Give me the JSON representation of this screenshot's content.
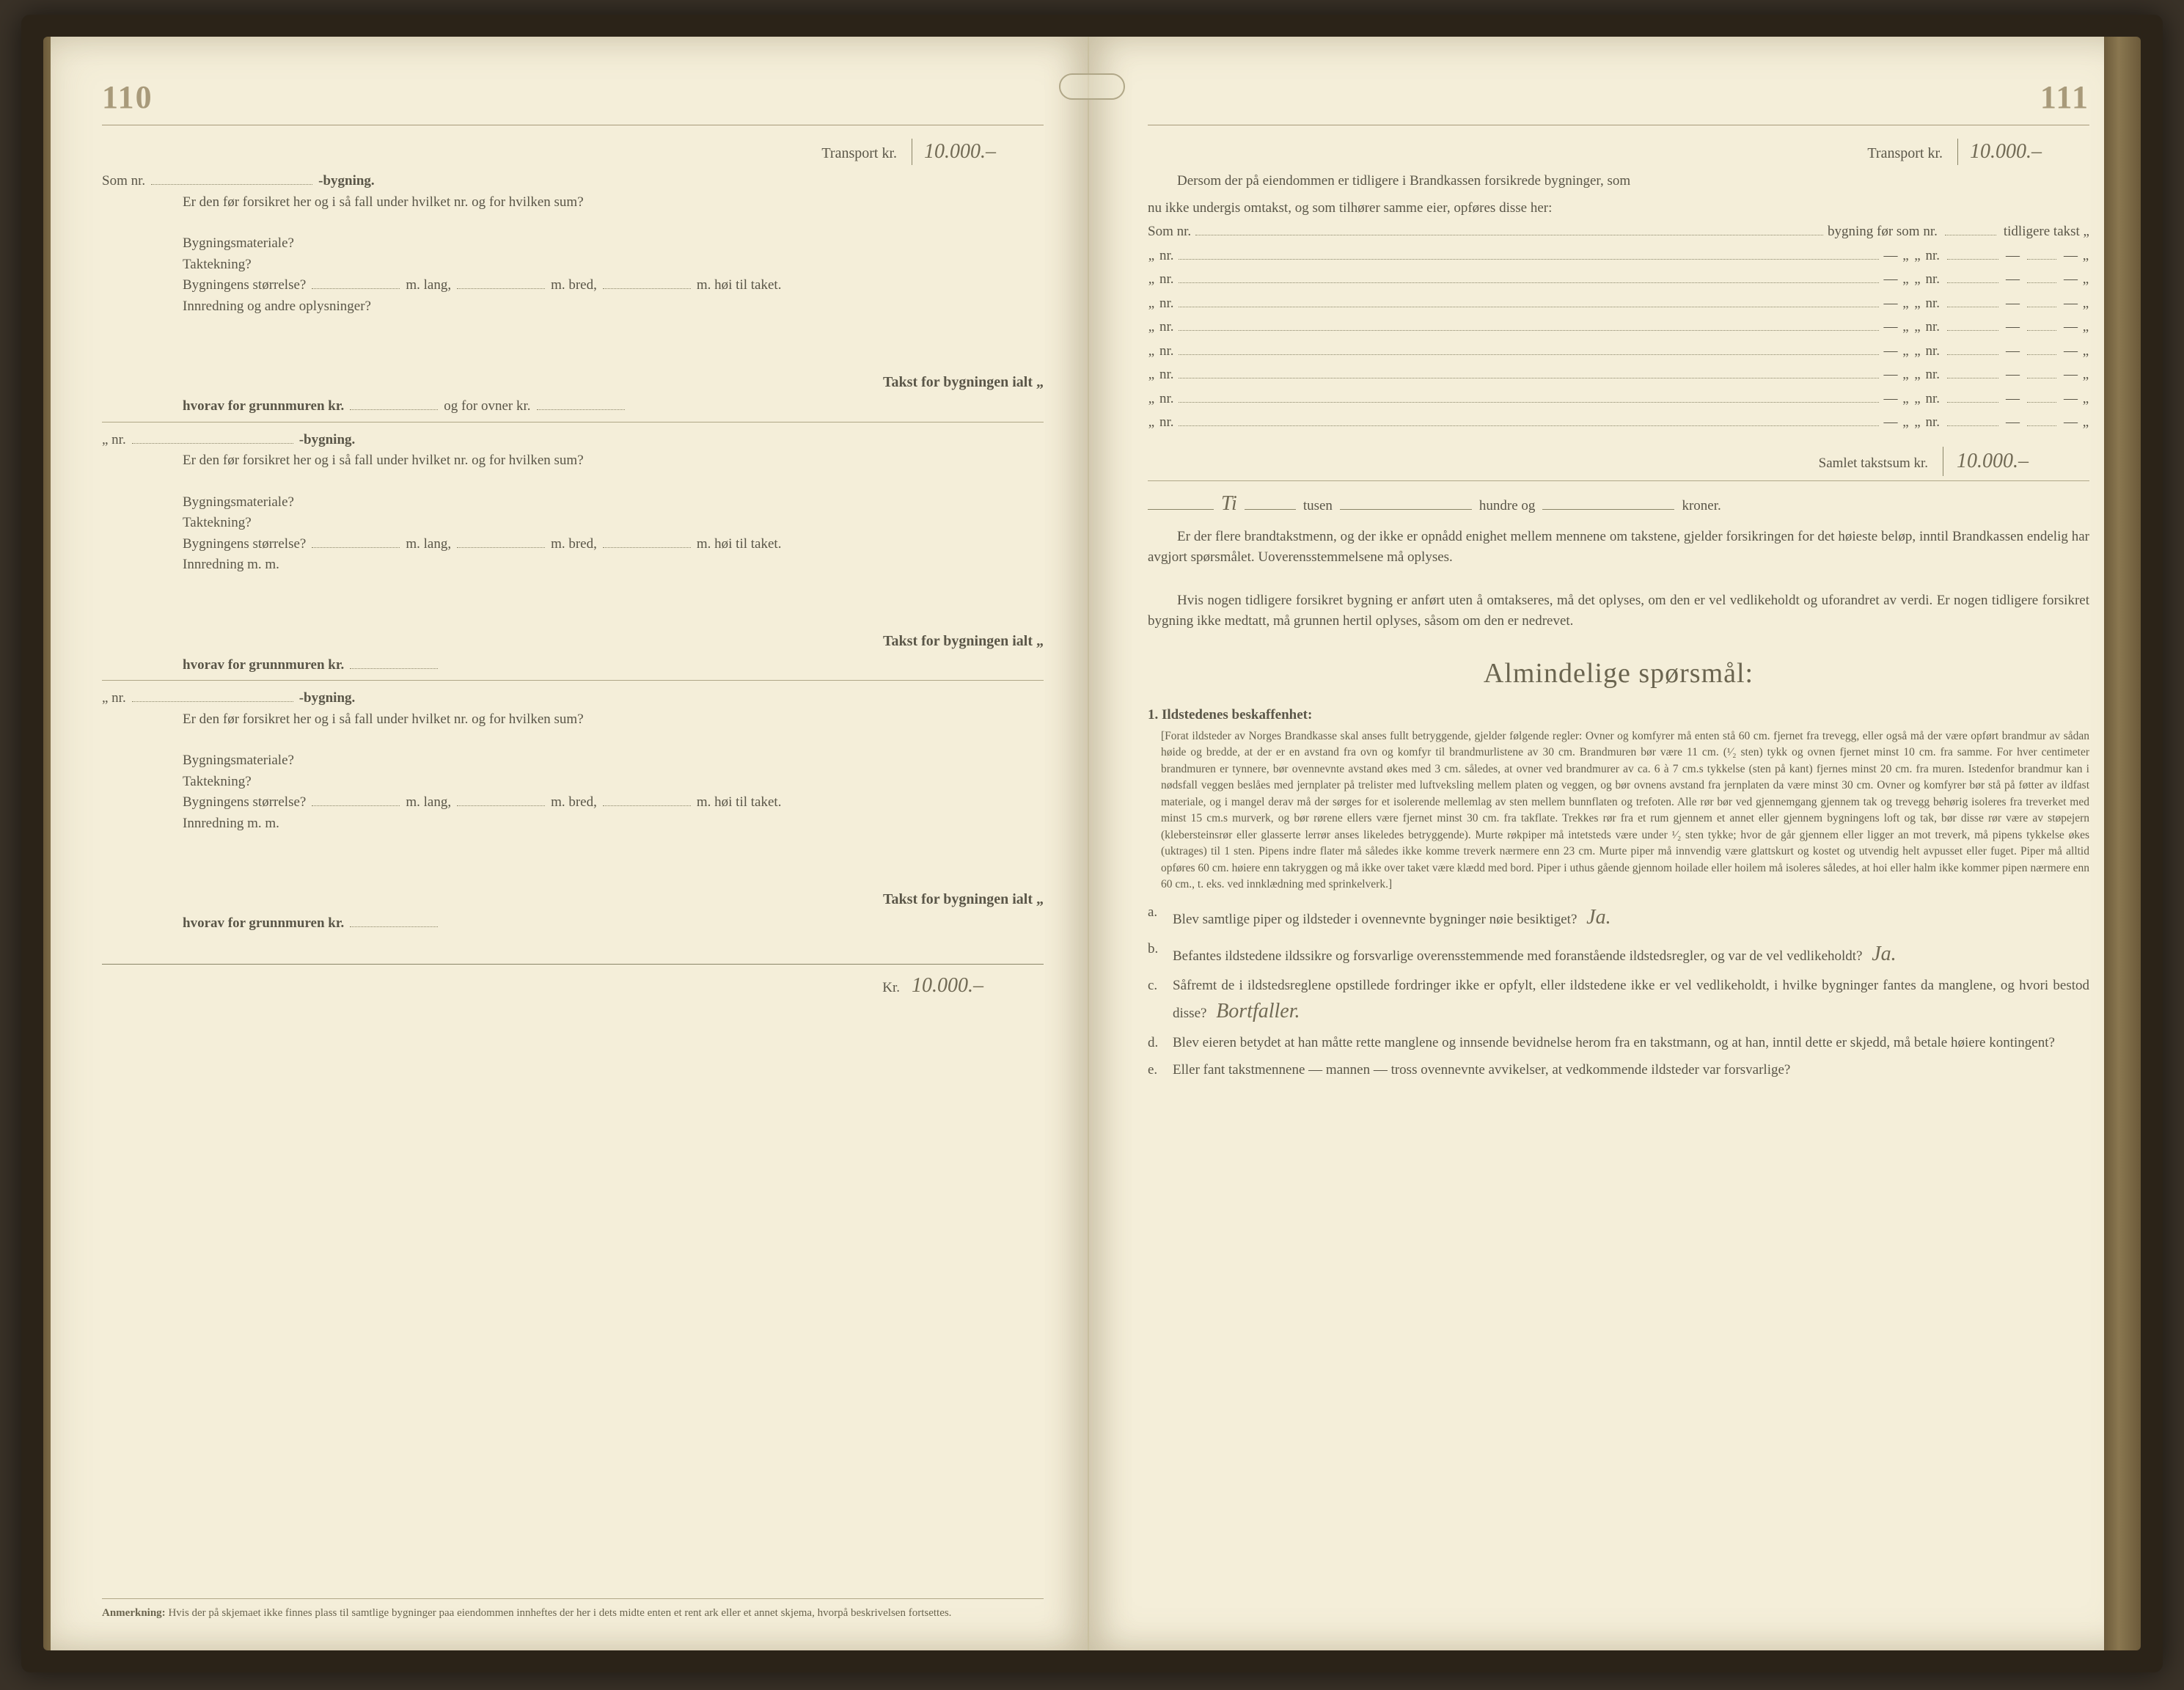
{
  "colors": {
    "paper": "#f4eed9",
    "ink": "#5a5648",
    "faded": "#a89a7a",
    "handwriting": "#716a55",
    "cover": "#2b2318"
  },
  "left": {
    "page_number": "110",
    "transport_label": "Transport kr.",
    "transport_value": "10.000.–",
    "building_blocks": [
      {
        "som_nr": "Som nr.",
        "bygning": "-bygning.",
        "q_insured": "Er den før forsikret her og i så fall under hvilket nr. og for hvilken sum?",
        "mat": "Bygningsmateriale?",
        "tak": "Taktekning?",
        "size_label": "Bygningens størrelse?",
        "lang": "m. lang,",
        "bred": "m. bred,",
        "hoi": "m. høi til taket.",
        "innred": "Innredning og andre oplysninger?",
        "takst_label": "Takst for bygningen ialt „",
        "hvorav": "hvorav for grunnmuren kr.",
        "ogfor": "og for ovner kr."
      },
      {
        "som_nr": "„ nr.",
        "bygning": "-bygning.",
        "q_insured": "Er den før forsikret her og i så fall under hvilket nr. og for hvilken sum?",
        "mat": "Bygningsmateriale?",
        "tak": "Taktekning?",
        "size_label": "Bygningens størrelse?",
        "lang": "m. lang,",
        "bred": "m. bred,",
        "hoi": "m. høi til taket.",
        "innred": "Innredning m. m.",
        "takst_label": "Takst for bygningen ialt „",
        "hvorav": "hvorav for grunnmuren kr.",
        "ogfor": ""
      },
      {
        "som_nr": "„ nr.",
        "bygning": "-bygning.",
        "q_insured": "Er den før forsikret her og i så fall under hvilket nr. og for hvilken sum?",
        "mat": "Bygningsmateriale?",
        "tak": "Taktekning?",
        "size_label": "Bygningens størrelse?",
        "lang": "m. lang,",
        "bred": "m. bred,",
        "hoi": "m. høi til taket.",
        "innred": "Innredning m. m.",
        "takst_label": "Takst for bygningen ialt „",
        "hvorav": "hvorav for grunnmuren kr.",
        "ogfor": ""
      }
    ],
    "kr_label": "Kr.",
    "kr_value": "10.000.–",
    "footnote_label": "Anmerkning:",
    "footnote_text": "Hvis der på skjemaet ikke finnes plass til samtlige bygninger paa eiendommen innheftes der her i dets midte enten et rent ark eller et annet skjema, hvorpå beskrivelsen fortsettes."
  },
  "right": {
    "page_number": "111",
    "transport_label": "Transport kr.",
    "transport_value": "10.000.–",
    "intro1": "Dersom der på eiendommen er tidligere i Brandkassen forsikrede bygninger, som",
    "intro2": "nu ikke undergis omtakst, og som tilhører samme eier, opføres disse her:",
    "col_som_nr": "Som nr.",
    "col_byg": "bygning før som nr.",
    "col_takst": "tidligere takst „",
    "rows_count": 8,
    "row_nr": "„ nr.",
    "row_nr_mid": "nr.",
    "row_dash": "—",
    "row_q": "„",
    "samlet_label": "Samlet takstsum kr.",
    "samlet_value": "10.000.–",
    "tusen_hand": "Ti",
    "tusen": "tusen",
    "hundre": "hundre og",
    "kroner": "kroner.",
    "para1": "Er der flere brandtakstmenn, og der ikke er opnådd enighet mellem mennene om takstene, gjelder forsikringen for det høieste beløp, inntil Brandkassen endelig har avgjort spørsmålet. Uoverensstemmelsene må oplyses.",
    "para2": "Hvis nogen tidligere forsikret bygning er anført uten å omtakseres, må det oplyses, om den er vel vedlikeholdt og uforandret av verdi. Er nogen tidligere forsikret bygning ikke medtatt, må grunnen hertil oplyses, såsom om den er nedrevet.",
    "heading": "Almindelige spørsmål:",
    "q1_num": "1.",
    "q1_label": "Ildstedenes beskaffenhet:",
    "fineprint": "[Forat ildsteder av Norges Brandkasse skal anses fullt betryggende, gjelder følgende regler: Ovner og komfyrer må enten stå 60 cm. fjernet fra trevegg, eller også må der være opført brandmur av sådan høide og bredde, at der er en avstand fra ovn og komfyr til brandmurlistene av 30 cm. Brandmuren bør være 11 cm. (¹⁄₂ sten) tykk og ovnen fjernet minst 10 cm. fra samme. For hver centimeter brandmuren er tynnere, bør ovennevnte avstand økes med 3 cm. således, at ovner ved brandmurer av ca. 6 à 7 cm.s tykkelse (sten på kant) fjernes minst 20 cm. fra muren. Istedenfor brandmur kan i nødsfall veggen beslåes med jernplater på trelister med luftveksling mellem platen og veggen, og bør ovnens avstand fra jernplaten da være minst 30 cm. Ovner og komfyrer bør stå på føtter av ildfast materiale, og i mangel derav må der sørges for et isolerende mellemlag av sten mellem bunnflaten og trefoten. Alle rør bør ved gjennemgang gjennem tak og trevegg behørig isoleres fra treverket med minst 15 cm.s murverk, og bør rørene ellers være fjernet minst 30 cm. fra takflate. Trekkes rør fra et rum gjennem et annet eller gjennem bygningens loft og tak, bør disse rør være av støpejern (klebersteinsrør eller glasserte lerrør anses likeledes betryggende). Murte røkpiper må intetsteds være under ¹⁄₂ sten tykke; hvor de går gjennem eller ligger an mot treverk, må pipens tykkelse økes (uktrages) til 1 sten. Pipens indre flater må således ikke komme treverk nærmere enn 23 cm. Murte piper må innvendig være glattskurt og kostet og utvendig helt avpusset eller fuget. Piper må alltid opføres 60 cm. høiere enn takryggen og må ikke over taket være klædd med bord. Piper i uthus gående gjennom hoilade eller hoilem må isoleres således, at hoi eller halm ikke kommer pipen nærmere enn 60 cm., t. eks. ved innklædning med sprinkelverk.]",
    "qa": [
      {
        "letter": "a.",
        "text": "Blev samtlige piper og ildsteder i ovennevnte bygninger nøie besiktiget?",
        "ans": "Ja."
      },
      {
        "letter": "b.",
        "text": "Befantes ildstedene ildssikre og forsvarlige overensstemmende med foranstående ildstedsregler, og var de vel vedlikeholdt?",
        "ans": "Ja."
      },
      {
        "letter": "c.",
        "text": "Såfremt de i ildstedsreglene opstillede fordringer ikke er opfylt, eller ildstedene ikke er vel vedlikeholdt, i hvilke bygninger fantes da manglene, og hvori bestod disse?",
        "ans": "Bortfaller."
      },
      {
        "letter": "d.",
        "text": "Blev eieren betydet at han måtte rette manglene og innsende bevidnelse herom fra en takstmann, og at han, inntil dette er skjedd, må betale høiere kontingent?",
        "ans": ""
      },
      {
        "letter": "e.",
        "text": "Eller fant takstmennene — mannen — tross ovennevnte avvikelser, at vedkommende ildsteder var forsvarlige?",
        "ans": ""
      }
    ]
  }
}
